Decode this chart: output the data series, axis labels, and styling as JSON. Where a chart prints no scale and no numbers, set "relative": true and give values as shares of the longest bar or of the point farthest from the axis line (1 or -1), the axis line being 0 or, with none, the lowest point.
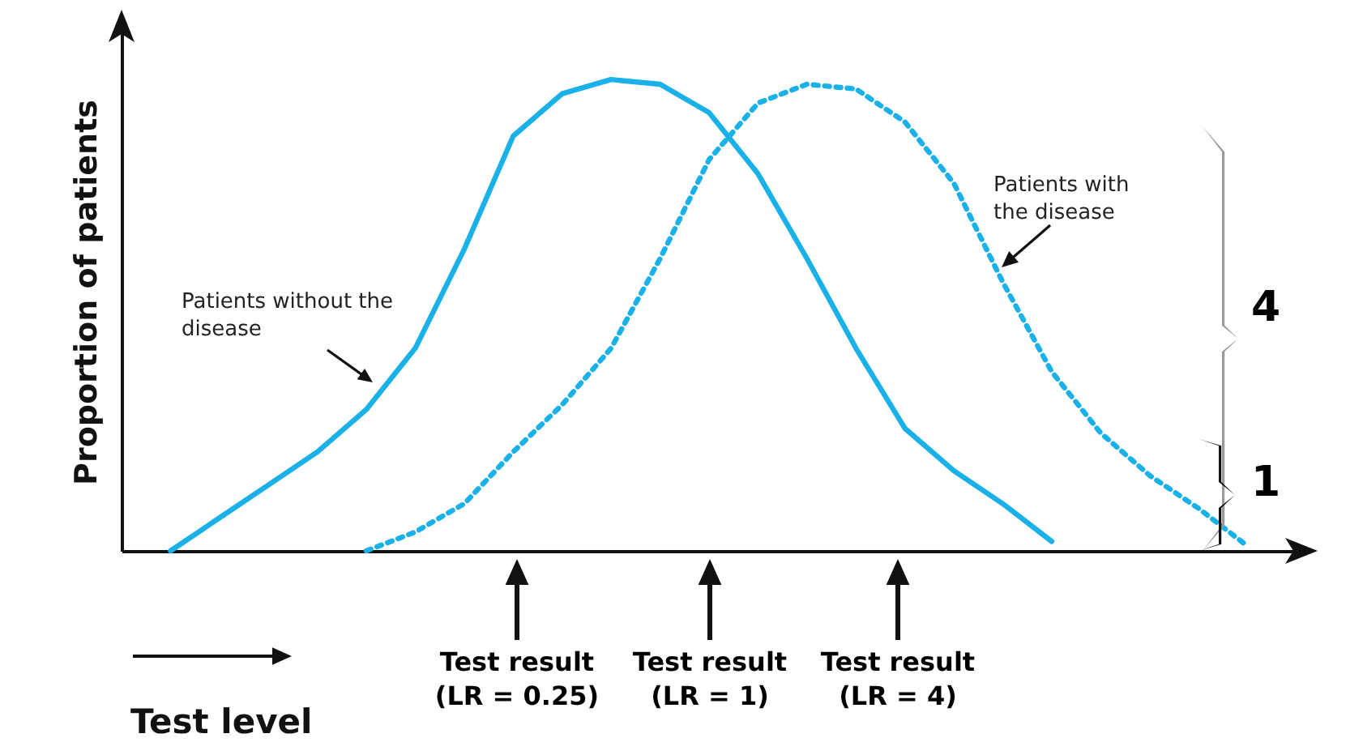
{
  "chart_data": {
    "type": "line",
    "relative": true,
    "xlabel": "Test level",
    "ylabel": "Proportion of patients",
    "categories": [
      null,
      null,
      null,
      null,
      null,
      null,
      null,
      null,
      null,
      null,
      null,
      null,
      null,
      null,
      null,
      null,
      null,
      null,
      null,
      null,
      null,
      null,
      null
    ],
    "series": [
      {
        "name": "Patients without the disease",
        "color": "#1ab0e8",
        "line_style": "solid",
        "values": [
          0,
          0.07,
          0.14,
          0.21,
          0.3,
          0.43,
          0.64,
          0.88,
          0.97,
          1.0,
          0.99,
          0.93,
          0.8,
          0.62,
          0.43,
          0.26,
          0.17,
          0.1,
          0.02,
          null,
          null,
          null,
          null
        ]
      },
      {
        "name": "Patients with the disease",
        "color": "#1ab0e8",
        "line_style": "dotted",
        "values": [
          null,
          null,
          null,
          null,
          0,
          0.04,
          0.1,
          0.21,
          0.31,
          0.43,
          0.62,
          0.83,
          0.95,
          0.99,
          0.98,
          0.91,
          0.78,
          0.57,
          0.38,
          0.25,
          0.16,
          0.09,
          0.01
        ]
      }
    ],
    "annotations": [
      "Test result (LR = 0.25)",
      "Test result (LR = 1)",
      "Test result (LR = 4)",
      "4",
      "1"
    ]
  }
}
